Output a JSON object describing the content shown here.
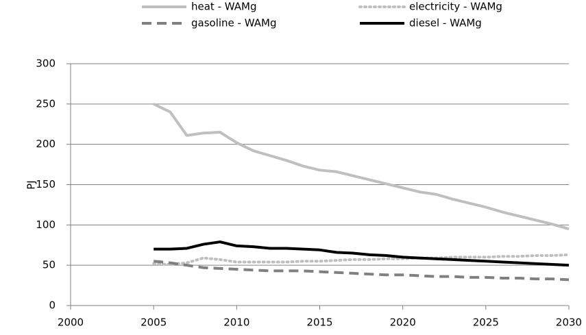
{
  "chart_data": {
    "type": "line",
    "y_label": "PJ",
    "x": [
      2005,
      2006,
      2007,
      2008,
      2009,
      2010,
      2011,
      2012,
      2013,
      2014,
      2015,
      2016,
      2017,
      2018,
      2019,
      2020,
      2021,
      2022,
      2023,
      2024,
      2025,
      2026,
      2027,
      2028,
      2029,
      2030
    ],
    "series": [
      {
        "name": "heat - WAMg",
        "color": "#bfbfbf",
        "dash": "solid",
        "values": [
          250,
          240,
          211,
          214,
          215,
          202,
          192,
          186,
          180,
          173,
          168,
          166,
          161,
          156,
          151,
          146,
          141,
          138,
          132,
          127,
          122,
          116,
          111,
          106,
          101,
          95
        ]
      },
      {
        "name": "electricity - WAMg",
        "color": "#bfbfbf",
        "dash": "dotted",
        "values": [
          52,
          51,
          53,
          59,
          57,
          54,
          54,
          54,
          54,
          55,
          55,
          56,
          57,
          57,
          58,
          58,
          59,
          59,
          60,
          60,
          60,
          61,
          61,
          62,
          62,
          63
        ]
      },
      {
        "name": "gasoline - WAMg",
        "color": "#808080",
        "dash": "dashed",
        "values": [
          55,
          53,
          50,
          47,
          46,
          45,
          44,
          43,
          43,
          43,
          42,
          41,
          40,
          39,
          38,
          38,
          37,
          36,
          36,
          35,
          35,
          34,
          34,
          33,
          33,
          32
        ]
      },
      {
        "name": "diesel - WAMg",
        "color": "#000000",
        "dash": "solid",
        "values": [
          70,
          70,
          71,
          76,
          79,
          74,
          73,
          71,
          71,
          70,
          69,
          66,
          65,
          63,
          62,
          60,
          59,
          58,
          57,
          56,
          55,
          54,
          53,
          52,
          51,
          50
        ]
      }
    ],
    "xlim": [
      2000,
      2030
    ],
    "xticks": [
      2000,
      2005,
      2010,
      2015,
      2020,
      2025,
      2030
    ],
    "ylim": [
      0,
      300
    ],
    "yticks": [
      0,
      50,
      100,
      150,
      200,
      250,
      300
    ],
    "grid": true,
    "legend": "top"
  }
}
